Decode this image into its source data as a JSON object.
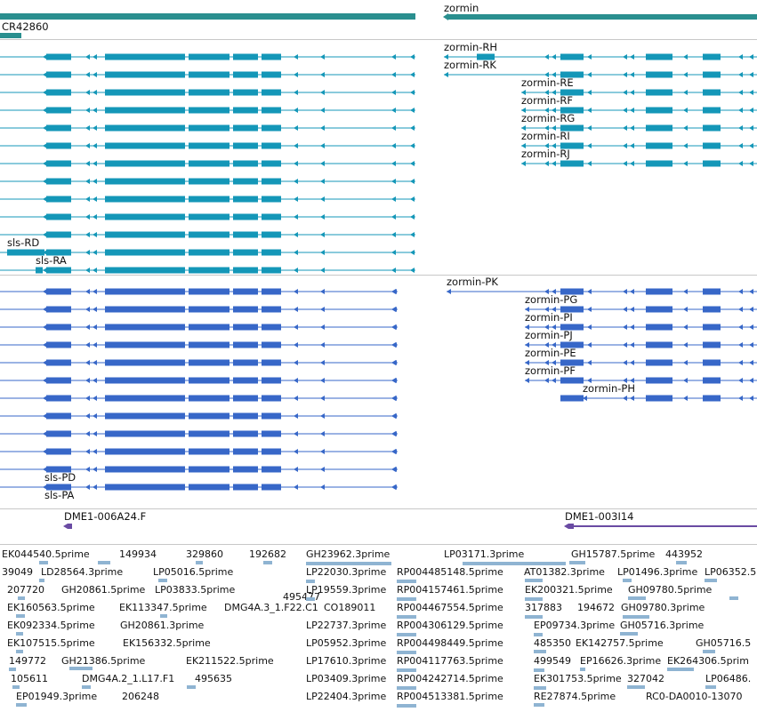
{
  "colors": {
    "track_gene": "#2a8f8f",
    "track_cyan": "#1497b8",
    "track_blue": "#3767c8",
    "track_purple": "#6a4ba3",
    "track_est": "#8fb4d2"
  },
  "genes": {
    "zormin": "zormin",
    "cr42860": "CR42860"
  },
  "transcripts": {
    "zormin_rh": "zormin-RH",
    "zormin_rk": "zormin-RK",
    "zormin_re": "zormin-RE",
    "zormin_rf": "zormin-RF",
    "zormin_rg": "zormin-RG",
    "zormin_ri": "zormin-RI",
    "zormin_rj": "zormin-RJ",
    "sls_rd": "sls-RD",
    "sls_ra": "sls-RA"
  },
  "proteins": {
    "zormin_pk": "zormin-PK",
    "zormin_pg": "zormin-PG",
    "zormin_pi": "zormin-PI",
    "zormin_pj": "zormin-PJ",
    "zormin_pe": "zormin-PE",
    "zormin_pf": "zormin-PF",
    "zormin_ph": "zormin-PH",
    "sls_pd": "sls-PD",
    "sls_pa": "sls-PA"
  },
  "clones": {
    "left": "DME1-006A24.F",
    "right": "DME1-003I14"
  },
  "ests": [
    "EK044540.5prime",
    "149934",
    "329860",
    "192682",
    "GH23962.3prime",
    "LP03171.3prime",
    "GH15787.5prime",
    "443952",
    "39049",
    "LD28564.3prime",
    "LP05016.5prime",
    "495477",
    "LP22030.3prime",
    "RP004485148.5prime",
    "AT01382.3prime",
    "LP01496.3prime",
    "LP06352.5",
    "207720",
    "GH20861.5prime",
    "LP03833.5prime",
    "LP19559.3prime",
    "RP004157461.5prime",
    "EK200321.5prime",
    "GH09780.5prime",
    "EK160563.5prime",
    "EK113347.5prime",
    "DMG4A.3_1.F22.C1",
    "CO189011",
    "RP004467554.5prime",
    "317883",
    "194672",
    "GH09780.3prime",
    "EK092334.5prime",
    "GH20861.3prime",
    "LP22737.3prime",
    "RP004306129.5prime",
    "EP09734.3prime",
    "GH05716.3prime",
    "EK107515.5prime",
    "EK156332.5prime",
    "LP05952.3prime",
    "RP004498449.5prime",
    "485350",
    "EK142757.5prime",
    "GH05716.5",
    "149772",
    "GH21386.5prime",
    "EK211522.5prime",
    "LP17610.3prime",
    "RP004117763.5prime",
    "499549",
    "EP16626.3prime",
    "EK264306.5prim",
    "105611",
    "DMG4A.2_1.L17.F1",
    "495635",
    "LP03409.3prime",
    "RP004242714.5prime",
    "EK301753.5prime",
    "327042",
    "LP06486.",
    "EP01949.3prime",
    "206248",
    "LP22404.3prime",
    "RP004513381.5prime",
    "RE27874.5prime",
    "RC0-DA0010-13070"
  ]
}
